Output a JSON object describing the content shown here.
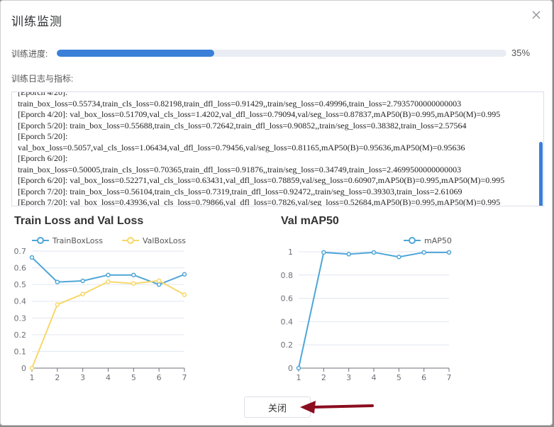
{
  "dialog": {
    "title": "训练监测",
    "close_icon": "close-icon",
    "progress_label": "训练进度:",
    "progress_value": 35,
    "progress_text": "35%",
    "progress_color": "#3b7fd9",
    "log_label": "训练日志与指标:",
    "close_button": "关闭"
  },
  "log_lines": [
    "[Eporch 4/20]:",
    "train_box_loss=0.55734,train_cls_loss=0.82198,train_dfl_loss=0.91429,,train/seg_loss=0.49996,train_loss=2.7935700000000003",
    "[Eporch 4/20]: val_box_loss=0.51709,val_cls_loss=1.4202,val_dfl_loss=0.79094,val/seg_loss=0.87837,mAP50(B)=0.995,mAP50(M)=0.995",
    "[Eporch 5/20]: train_box_loss=0.55688,train_cls_loss=0.72642,train_dfl_loss=0.90852,,train/seg_loss=0.38382,train_loss=2.57564",
    "[Eporch 5/20]:",
    "val_box_loss=0.5057,val_cls_loss=1.06434,val_dfl_loss=0.79456,val/seg_loss=0.81165,mAP50(B)=0.95636,mAP50(M)=0.95636",
    "[Eporch 6/20]:",
    "train_box_loss=0.50005,train_cls_loss=0.70365,train_dfl_loss=0.91876,,train/seg_loss=0.34749,train_loss=2.4699500000000003",
    "[Eporch 6/20]: val_box_loss=0.52271,val_cls_loss=0.63431,val_dfl_loss=0.78859,val/seg_loss=0.60907,mAP50(B)=0.995,mAP50(M)=0.995",
    "[Eporch 7/20]: train_box_loss=0.56104,train_cls_loss=0.7319,train_dfl_loss=0.92472,,train/seg_loss=0.39303,train_loss=2.61069",
    "[Eporch 7/20]: val_box_loss=0.43936,val_cls_loss=0.79866,val_dfl_loss=0.7826,val/seg_loss=0.52684,mAP50(B)=0.995,mAP50(M)=0.995"
  ],
  "chart_data": [
    {
      "type": "line",
      "title": "Train Loss and Val Loss",
      "x": [
        1,
        2,
        3,
        4,
        5,
        6,
        7
      ],
      "ylim": [
        0,
        0.7
      ],
      "yticks": [
        0,
        0.1,
        0.2,
        0.3,
        0.4,
        0.5,
        0.6,
        0.7
      ],
      "grid": true,
      "legend": "top",
      "series": [
        {
          "name": "TrainBoxLoss",
          "color": "#4ea6d8",
          "values": [
            0.662,
            0.515,
            0.522,
            0.557,
            0.557,
            0.5,
            0.561
          ]
        },
        {
          "name": "ValBoxLoss",
          "color": "#f7d86a",
          "values": [
            0.0,
            0.38,
            0.443,
            0.517,
            0.506,
            0.523,
            0.439
          ]
        }
      ]
    },
    {
      "type": "line",
      "title": "Val mAP50",
      "x": [
        1,
        2,
        3,
        4,
        5,
        6,
        7
      ],
      "ylim": [
        0,
        1
      ],
      "yticks": [
        0,
        0.2,
        0.4,
        0.6,
        0.8,
        1
      ],
      "grid": true,
      "legend": "top-right",
      "series": [
        {
          "name": "mAP50",
          "color": "#4ea6d8",
          "values": [
            0.0,
            0.995,
            0.98,
            0.995,
            0.956,
            0.995,
            0.995
          ]
        }
      ]
    }
  ]
}
